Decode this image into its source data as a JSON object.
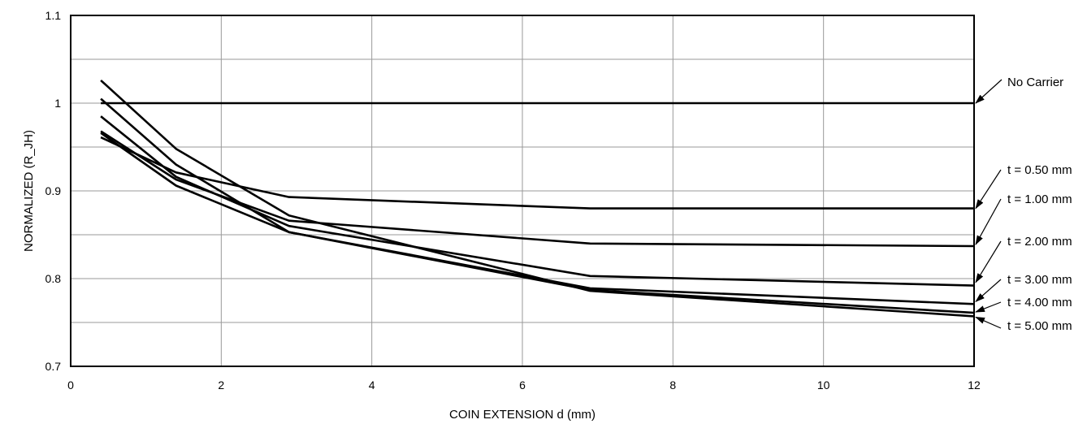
{
  "chart_data": {
    "type": "line",
    "title": "",
    "xlabel": "COIN EXTENSION d (mm)",
    "ylabel": "NORMALIZED (R_JH)",
    "xlim": [
      0,
      12
    ],
    "ylim": [
      0.7,
      1.1
    ],
    "x_ticks": [
      "0",
      "2",
      "4",
      "6",
      "8",
      "10",
      "12"
    ],
    "y_ticks": [
      "0.7",
      "0.8",
      "0.9",
      "1",
      "1.1"
    ],
    "grid": true,
    "line_color": "#000000",
    "grid_color": "#999999",
    "series": [
      {
        "name": "No Carrier",
        "x": [
          0.4,
          1.4,
          2.9,
          6.9,
          12
        ],
        "y": [
          1.0,
          1.0,
          1.0,
          1.0,
          1.0
        ]
      },
      {
        "name": "t = 0.50 mm",
        "x": [
          0.4,
          1.4,
          2.9,
          6.9,
          12
        ],
        "y": [
          0.961,
          0.921,
          0.893,
          0.88,
          0.88
        ]
      },
      {
        "name": "t = 1.00 mm",
        "x": [
          0.4,
          1.4,
          2.9,
          6.9,
          12
        ],
        "y": [
          0.968,
          0.913,
          0.866,
          0.84,
          0.837
        ]
      },
      {
        "name": "t = 2.00 mm",
        "x": [
          0.4,
          1.4,
          2.9,
          6.9,
          12
        ],
        "y": [
          0.985,
          0.916,
          0.86,
          0.803,
          0.792
        ]
      },
      {
        "name": "t = 3.00 mm",
        "x": [
          0.4,
          1.4,
          2.9,
          6.9,
          12
        ],
        "y": [
          0.966,
          0.906,
          0.853,
          0.789,
          0.771
        ]
      },
      {
        "name": "t = 4.00 mm",
        "x": [
          0.4,
          1.4,
          2.9,
          6.9,
          12
        ],
        "y": [
          1.005,
          0.93,
          0.853,
          0.787,
          0.761
        ]
      },
      {
        "name": "t = 5.00 mm",
        "x": [
          0.4,
          1.4,
          2.9,
          6.9,
          12
        ],
        "y": [
          1.026,
          0.948,
          0.872,
          0.786,
          0.757
        ]
      }
    ]
  }
}
